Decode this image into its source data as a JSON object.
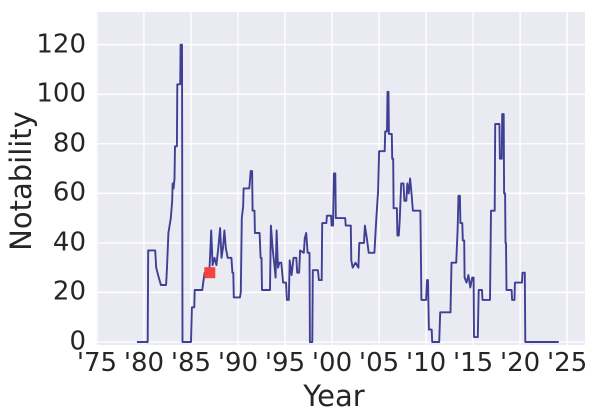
{
  "figure": {
    "background": "#ffffff",
    "plot_background": "#eaeaf2",
    "grid_color": "#ffffff",
    "tick_color": "#262626"
  },
  "chart_data": {
    "type": "line",
    "title": "",
    "xlabel": "Year",
    "ylabel": "Notability",
    "grid": true,
    "legend_position": "none",
    "xlim": [
      1974.9,
      2026.9
    ],
    "ylim": [
      -1.2,
      133.2
    ],
    "x_ticks": [
      {
        "value": 1975,
        "label": "'75"
      },
      {
        "value": 1980,
        "label": "'80"
      },
      {
        "value": 1985,
        "label": "'85"
      },
      {
        "value": 1990,
        "label": "'90"
      },
      {
        "value": 1995,
        "label": "'95"
      },
      {
        "value": 2000,
        "label": "'00"
      },
      {
        "value": 2005,
        "label": "'05"
      },
      {
        "value": 2010,
        "label": "'10"
      },
      {
        "value": 2015,
        "label": "'15"
      },
      {
        "value": 2020,
        "label": "'20"
      },
      {
        "value": 2025,
        "label": "'25"
      }
    ],
    "y_ticks": [
      {
        "value": 0,
        "label": "0"
      },
      {
        "value": 20,
        "label": "20"
      },
      {
        "value": 40,
        "label": "40"
      },
      {
        "value": 60,
        "label": "60"
      },
      {
        "value": 80,
        "label": "80"
      },
      {
        "value": 100,
        "label": "100"
      },
      {
        "value": 120,
        "label": "120"
      }
    ],
    "series": [
      {
        "name": "notability",
        "color": "#3f3f94",
        "line_width": 1.9,
        "points": [
          [
            1979.25,
            0
          ],
          [
            1980.4,
            0
          ],
          [
            1980.45,
            37
          ],
          [
            1981.2,
            37
          ],
          [
            1981.3,
            30
          ],
          [
            1981.5,
            27
          ],
          [
            1981.8,
            23
          ],
          [
            1982.35,
            23
          ],
          [
            1982.45,
            30
          ],
          [
            1982.6,
            44
          ],
          [
            1982.85,
            50
          ],
          [
            1983.0,
            57
          ],
          [
            1983.05,
            64
          ],
          [
            1983.15,
            62
          ],
          [
            1983.25,
            66
          ],
          [
            1983.3,
            79
          ],
          [
            1983.5,
            79
          ],
          [
            1983.55,
            104
          ],
          [
            1983.85,
            104
          ],
          [
            1983.9,
            120
          ],
          [
            1984.05,
            120
          ],
          [
            1984.1,
            0
          ],
          [
            1985.0,
            0
          ],
          [
            1985.1,
            14
          ],
          [
            1985.35,
            14
          ],
          [
            1985.4,
            21
          ],
          [
            1986.2,
            21
          ],
          [
            1986.3,
            24
          ],
          [
            1986.45,
            28
          ],
          [
            1986.95,
            28
          ],
          [
            1987.0,
            32
          ],
          [
            1987.15,
            45
          ],
          [
            1987.3,
            31
          ],
          [
            1987.5,
            34
          ],
          [
            1987.7,
            31
          ],
          [
            1987.9,
            38
          ],
          [
            1988.1,
            46
          ],
          [
            1988.25,
            34
          ],
          [
            1988.4,
            38
          ],
          [
            1988.55,
            45
          ],
          [
            1988.7,
            38
          ],
          [
            1988.9,
            34
          ],
          [
            1989.3,
            34
          ],
          [
            1989.4,
            28
          ],
          [
            1989.5,
            28
          ],
          [
            1989.55,
            18
          ],
          [
            1990.2,
            18
          ],
          [
            1990.3,
            20
          ],
          [
            1990.4,
            50
          ],
          [
            1990.55,
            55
          ],
          [
            1990.6,
            62
          ],
          [
            1991.2,
            62
          ],
          [
            1991.35,
            69
          ],
          [
            1991.5,
            69
          ],
          [
            1991.55,
            53
          ],
          [
            1991.75,
            53
          ],
          [
            1991.8,
            44
          ],
          [
            1992.3,
            44
          ],
          [
            1992.4,
            34
          ],
          [
            1992.5,
            34
          ],
          [
            1992.55,
            21
          ],
          [
            1993.4,
            21
          ],
          [
            1993.5,
            47
          ],
          [
            1993.7,
            37
          ],
          [
            1993.9,
            30
          ],
          [
            1994.0,
            26
          ],
          [
            1994.1,
            45
          ],
          [
            1994.25,
            30
          ],
          [
            1994.4,
            32
          ],
          [
            1994.6,
            32
          ],
          [
            1994.8,
            24
          ],
          [
            1995.1,
            24
          ],
          [
            1995.2,
            17
          ],
          [
            1995.4,
            17
          ],
          [
            1995.5,
            33
          ],
          [
            1995.7,
            27
          ],
          [
            1995.9,
            34
          ],
          [
            1996.2,
            34
          ],
          [
            1996.3,
            28
          ],
          [
            1996.5,
            28
          ],
          [
            1996.6,
            37
          ],
          [
            1997.0,
            36
          ],
          [
            1997.1,
            42
          ],
          [
            1997.25,
            44
          ],
          [
            1997.4,
            36
          ],
          [
            1997.6,
            36
          ],
          [
            1997.65,
            0
          ],
          [
            1997.9,
            0
          ],
          [
            1997.95,
            29
          ],
          [
            1998.5,
            29
          ],
          [
            1998.6,
            25
          ],
          [
            1998.9,
            25
          ],
          [
            1998.95,
            48
          ],
          [
            1999.4,
            48
          ],
          [
            1999.45,
            51
          ],
          [
            1999.9,
            51
          ],
          [
            1999.95,
            47
          ],
          [
            2000.1,
            47
          ],
          [
            2000.2,
            68
          ],
          [
            2000.35,
            68
          ],
          [
            2000.4,
            50
          ],
          [
            2001.4,
            50
          ],
          [
            2001.45,
            47
          ],
          [
            2002.0,
            47
          ],
          [
            2002.05,
            33
          ],
          [
            2002.2,
            30
          ],
          [
            2002.5,
            32
          ],
          [
            2002.8,
            30
          ],
          [
            2002.9,
            40
          ],
          [
            2003.4,
            40
          ],
          [
            2003.5,
            47
          ],
          [
            2003.7,
            42
          ],
          [
            2003.9,
            36
          ],
          [
            2004.5,
            36
          ],
          [
            2004.7,
            49
          ],
          [
            2004.9,
            61
          ],
          [
            2005.0,
            77
          ],
          [
            2005.6,
            77
          ],
          [
            2005.65,
            85
          ],
          [
            2005.85,
            85
          ],
          [
            2005.9,
            101
          ],
          [
            2006.0,
            101
          ],
          [
            2006.05,
            84
          ],
          [
            2006.35,
            84
          ],
          [
            2006.4,
            74
          ],
          [
            2006.5,
            74
          ],
          [
            2006.55,
            54
          ],
          [
            2006.9,
            54
          ],
          [
            2006.95,
            43
          ],
          [
            2007.1,
            43
          ],
          [
            2007.2,
            49
          ],
          [
            2007.35,
            64
          ],
          [
            2007.6,
            64
          ],
          [
            2007.7,
            57
          ],
          [
            2007.9,
            57
          ],
          [
            2008.0,
            64
          ],
          [
            2008.15,
            60
          ],
          [
            2008.3,
            66
          ],
          [
            2008.45,
            60
          ],
          [
            2008.6,
            53
          ],
          [
            2009.4,
            53
          ],
          [
            2009.5,
            17
          ],
          [
            2010.0,
            17
          ],
          [
            2010.1,
            25
          ],
          [
            2010.2,
            25
          ],
          [
            2010.3,
            5
          ],
          [
            2010.6,
            5
          ],
          [
            2010.65,
            0
          ],
          [
            2011.4,
            0
          ],
          [
            2011.5,
            12
          ],
          [
            2012.6,
            12
          ],
          [
            2012.7,
            32
          ],
          [
            2013.2,
            32
          ],
          [
            2013.35,
            45
          ],
          [
            2013.45,
            59
          ],
          [
            2013.6,
            59
          ],
          [
            2013.65,
            48
          ],
          [
            2013.85,
            48
          ],
          [
            2013.9,
            41
          ],
          [
            2014.05,
            41
          ],
          [
            2014.1,
            26
          ],
          [
            2014.3,
            24
          ],
          [
            2014.5,
            27
          ],
          [
            2014.7,
            22
          ],
          [
            2014.9,
            26
          ],
          [
            2015.05,
            26
          ],
          [
            2015.1,
            2
          ],
          [
            2015.5,
            2
          ],
          [
            2015.6,
            21
          ],
          [
            2015.95,
            21
          ],
          [
            2016.0,
            17
          ],
          [
            2016.8,
            17
          ],
          [
            2016.9,
            53
          ],
          [
            2017.3,
            53
          ],
          [
            2017.35,
            88
          ],
          [
            2017.8,
            88
          ],
          [
            2017.85,
            74
          ],
          [
            2018.05,
            74
          ],
          [
            2018.1,
            92
          ],
          [
            2018.25,
            92
          ],
          [
            2018.3,
            60
          ],
          [
            2018.4,
            60
          ],
          [
            2018.45,
            40
          ],
          [
            2018.5,
            40
          ],
          [
            2018.55,
            21
          ],
          [
            2019.1,
            21
          ],
          [
            2019.15,
            17
          ],
          [
            2019.4,
            17
          ],
          [
            2019.45,
            24
          ],
          [
            2020.2,
            24
          ],
          [
            2020.25,
            28
          ],
          [
            2020.5,
            28
          ],
          [
            2020.55,
            0
          ],
          [
            2024.1,
            0
          ]
        ]
      }
    ],
    "markers": [
      {
        "name": "highlight",
        "shape": "square",
        "color": "#f4433c",
        "size": 11,
        "x": 1987,
        "y": 28
      }
    ]
  }
}
